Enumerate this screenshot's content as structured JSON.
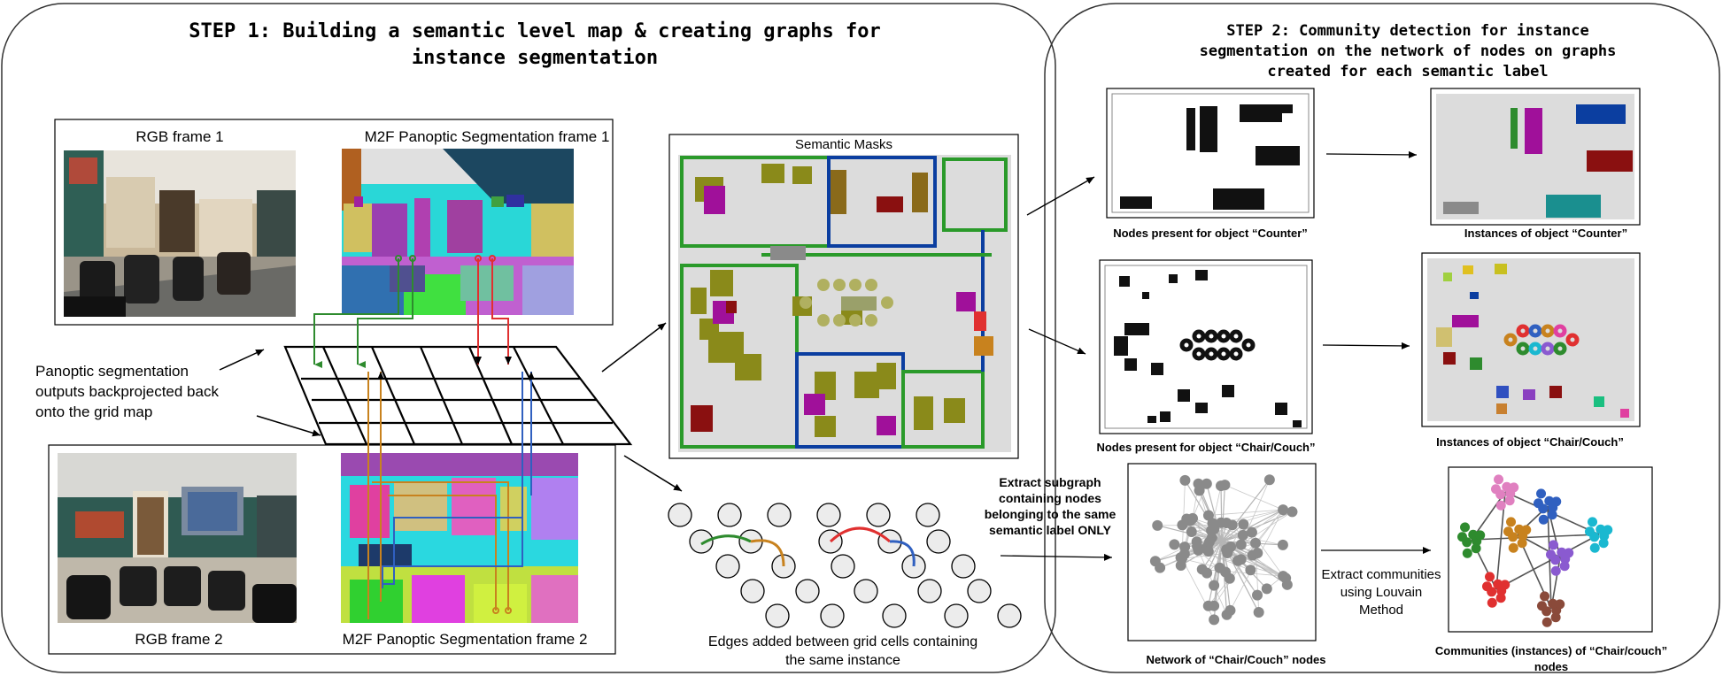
{
  "step1": {
    "title_line1": "STEP 1: Building a semantic level map & creating graphs for",
    "title_line2": "instance segmentation",
    "rgb1_label": "RGB frame 1",
    "m2f1_label": "M2F Panoptic Segmentation frame 1",
    "rgb2_label": "RGB frame 2",
    "m2f2_label": "M2F Panoptic Segmentation frame 2",
    "side_note": [
      "Panoptic segmentation",
      "outputs backprojected back",
      "onto the grid map"
    ],
    "semantic_masks_label": "Semantic Masks",
    "edges_caption": [
      "Edges added between grid cells containing",
      "the same instance"
    ]
  },
  "step2": {
    "title_lines": [
      "STEP 2: Community detection for instance",
      "segmentation on the network of nodes on graphs",
      "created for each semantic label"
    ],
    "counter_nodes_label": "Nodes present for object “Counter”",
    "counter_instances_label": "Instances of object “Counter”",
    "chair_nodes_label": "Nodes present for object “Chair/Couch”",
    "chair_instances_label": "Instances of object “Chair/Couch”",
    "extract_subgraph": [
      "Extract subgraph",
      "containing nodes",
      "belonging to the same",
      "semantic label ONLY"
    ],
    "extract_communities": [
      "Extract communities",
      "using Louvain",
      "Method"
    ],
    "network_label": "Network of “Chair/Couch” nodes",
    "communities_label": [
      "Communities (instances) of “Chair/couch”",
      "nodes"
    ]
  },
  "colors": {
    "green": "#2e8b2e",
    "orange": "#c8821e",
    "red": "#e03030",
    "blue": "#3060c0",
    "navy": "#0b3ea0",
    "magenta": "#a0109a",
    "olive": "#8a8a1a",
    "maroon": "#8a1010",
    "teal": "#1a8f8f",
    "cyan": "#1ab8d0",
    "violet": "#8a5ad0",
    "pink": "#e080c0",
    "brown": "#8a4a3a",
    "gray": "#8a8a8a"
  }
}
